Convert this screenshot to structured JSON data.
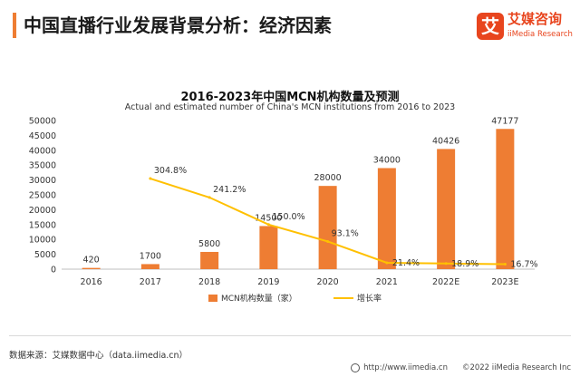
{
  "page": {
    "title": "中国直播行业发展背景分析：经济因素",
    "accent": "#ee7d33"
  },
  "logo": {
    "mark": "艾",
    "name_cn": "艾媒咨询",
    "name_en": "iiMedia Research",
    "color": "#e8451e"
  },
  "chart_data": {
    "type": "bar",
    "title": "2016-2023年中国MCN机构数量及预测",
    "subtitle": "Actual and estimated number of China's MCN institutions from 2016 to 2023",
    "categories": [
      "2016",
      "2017",
      "2018",
      "2019",
      "2020",
      "2021",
      "2022E",
      "2023E"
    ],
    "series": [
      {
        "name": "MCN机构数量（家）",
        "type": "bar",
        "color": "#ee7d33",
        "values": [
          420,
          1700,
          5800,
          14500,
          28000,
          34000,
          40426,
          47177
        ],
        "labels": [
          "420",
          "1700",
          "5800",
          "14500",
          "28000",
          "34000",
          "40426",
          "47177"
        ]
      },
      {
        "name": "增长率",
        "type": "line",
        "color": "#ffc000",
        "values": [
          null,
          304.8,
          241.2,
          150.0,
          93.1,
          21.4,
          18.9,
          16.7
        ],
        "labels": [
          "",
          "304.8%",
          "241.2%",
          "150.0%",
          "93.1%",
          "21.4%",
          "18.9%",
          "16.7%"
        ]
      }
    ],
    "ylim": [
      0,
      50000
    ],
    "yticks": [
      "0",
      "5000",
      "10000",
      "15000",
      "20000",
      "25000",
      "30000",
      "35000",
      "40000",
      "45000",
      "50000"
    ],
    "grid": false,
    "legend": "bottom"
  },
  "footer": {
    "source": "数据来源：艾媒数据中心（data.iimedia.cn）",
    "url": "http://www.iimedia.cn",
    "copyright": "©2022 iiMedia Research Inc"
  }
}
